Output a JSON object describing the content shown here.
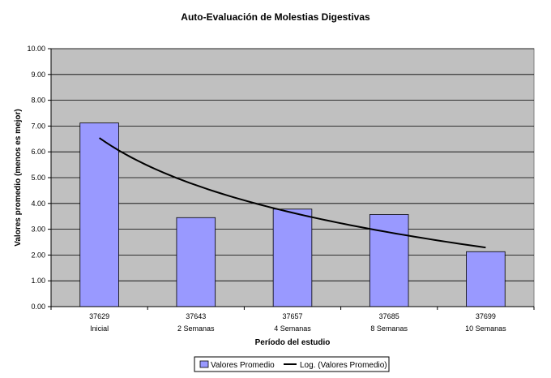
{
  "chart_data": {
    "type": "bar",
    "title": "Auto-Evaluación de Molestias Digestivas",
    "xlabel": "Período del estudio",
    "ylabel": "Valores promedio (menos es mejor)",
    "ylim": [
      0,
      10
    ],
    "ytick_step": 1,
    "ytick_labels": [
      "0.00",
      "1.00",
      "2.00",
      "3.00",
      "4.00",
      "5.00",
      "6.00",
      "7.00",
      "8.00",
      "9.00",
      "10.00"
    ],
    "grid": true,
    "legend_position": "bottom",
    "categories": [
      {
        "code": "37629",
        "label": "Inicial"
      },
      {
        "code": "37643",
        "label": "2 Semanas"
      },
      {
        "code": "37657",
        "label": "4 Semanas"
      },
      {
        "code": "37685",
        "label": "8 Semanas"
      },
      {
        "code": "37699",
        "label": "10 Semanas"
      }
    ],
    "series": [
      {
        "name": "Valores Promedio",
        "kind": "bar",
        "color": "#9999ff",
        "values": [
          7.12,
          3.45,
          3.78,
          3.57,
          2.13
        ]
      },
      {
        "name": "Log. (Valores Promedio)",
        "kind": "log-trendline",
        "color": "#000000",
        "trend_start": 6.54,
        "trend_end": 2.29
      }
    ],
    "plot_background": "#c0c0c0"
  }
}
